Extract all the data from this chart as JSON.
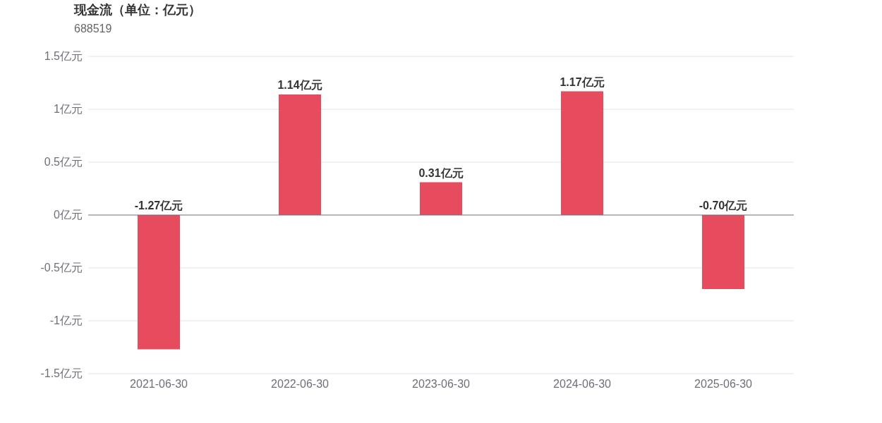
{
  "chart_data": {
    "type": "bar",
    "title": "现金流（单位：亿元）",
    "subtitle": "688519",
    "categories": [
      "2021-06-30",
      "2022-06-30",
      "2023-06-30",
      "2024-06-30",
      "2025-06-30"
    ],
    "values": [
      -1.27,
      1.14,
      0.31,
      1.17,
      -0.7
    ],
    "value_labels": [
      "-1.27亿元",
      "1.14亿元",
      "0.31亿元",
      "1.17亿元",
      "-0.70亿元"
    ],
    "color": "#e64b5e",
    "ylim": [
      -1.5,
      1.5
    ],
    "yticks": [
      {
        "value": -1.5,
        "label": "-1.5亿元"
      },
      {
        "value": -1,
        "label": "-1亿元"
      },
      {
        "value": -0.5,
        "label": "-0.5亿元"
      },
      {
        "value": 0,
        "label": "0亿元"
      },
      {
        "value": 0.5,
        "label": "0.5亿元"
      },
      {
        "value": 1,
        "label": "1亿元"
      },
      {
        "value": 1.5,
        "label": "1.5亿元"
      }
    ],
    "grid": "y"
  }
}
